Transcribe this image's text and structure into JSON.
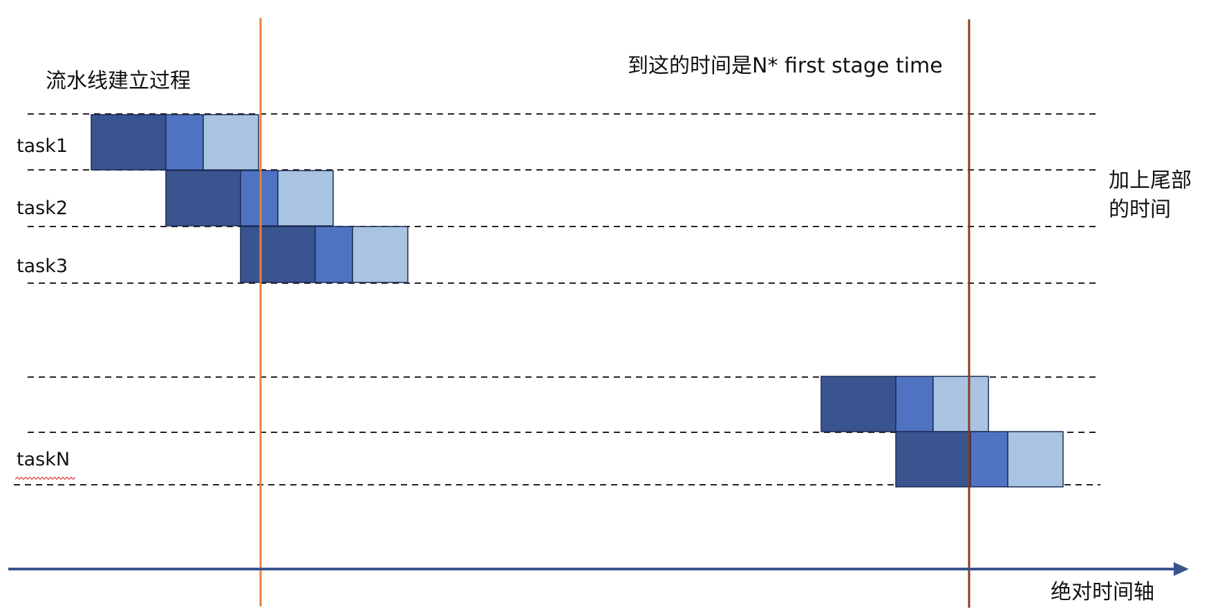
{
  "texts": {
    "pipeline_setup": "流水线建立过程",
    "first_stage_note": "到这的时间是N* first stage time",
    "tail_time_line1": "加上尾部",
    "tail_time_line2": "的时间",
    "time_axis": "绝对时间轴"
  },
  "tasks": [
    {
      "label": "task1"
    },
    {
      "label": "task2"
    },
    {
      "label": "task3"
    },
    {
      "label": ""
    },
    {
      "label": "taskN"
    }
  ],
  "colors": {
    "stage_1": "#3a5490",
    "stage_2": "#4f73c2",
    "stage_3": "#a8c4e2",
    "box_border": "#1e2b55",
    "axis": "#3a5490",
    "marker_1": "#e8813a",
    "marker_2": "#8b3a1c",
    "dash": "#222222"
  }
}
